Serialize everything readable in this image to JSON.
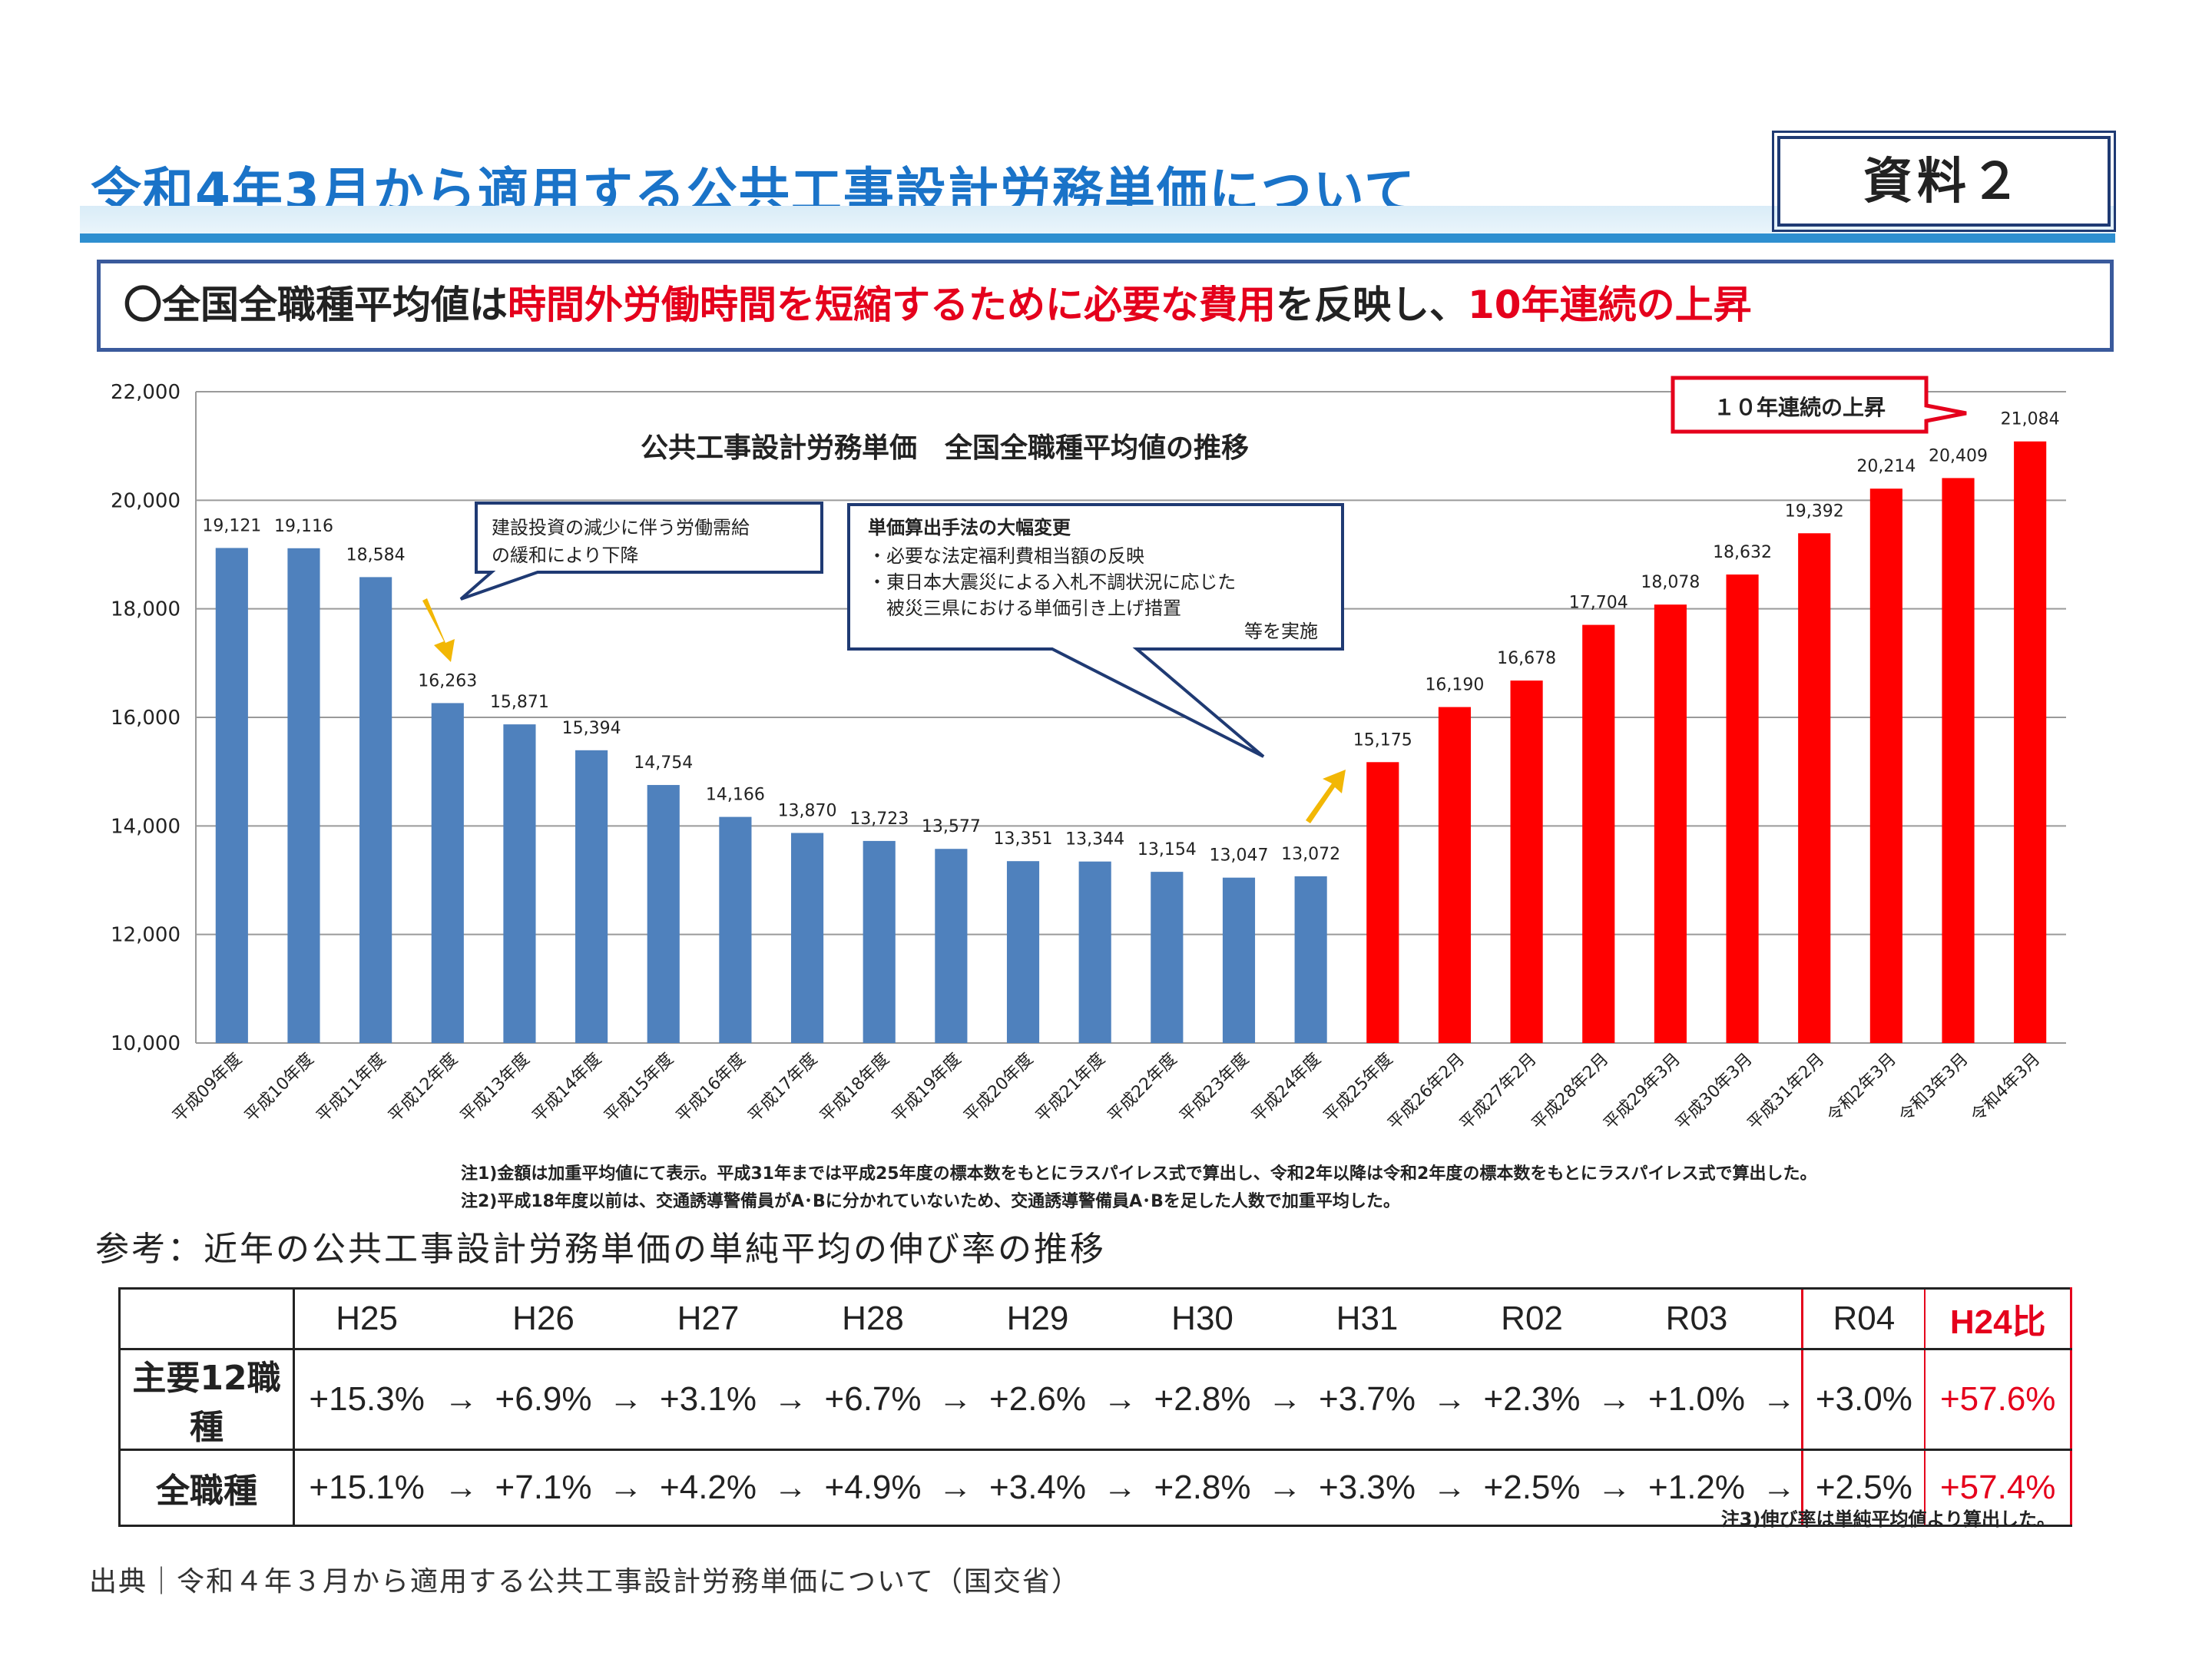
{
  "header": {
    "title": "令和4年3月から適用する公共工事設計労務単価について",
    "badge": "資料２"
  },
  "summary": {
    "prefix": "〇全国全職種平均値は",
    "highlight1": "時間外労働時間を短縮するために必要な費用",
    "middle": "を反映し、",
    "highlight2": "10年連続の上昇"
  },
  "chart_data": {
    "type": "bar",
    "title": "公共工事設計労務単価　全国全職種平均値の推移",
    "xlabel": "",
    "ylabel": "",
    "ylim": [
      10000,
      22000
    ],
    "yticks": [
      "10,000",
      "12,000",
      "14,000",
      "16,000",
      "18,000",
      "20,000",
      "22,000"
    ],
    "categories": [
      "平成09年度",
      "平成10年度",
      "平成11年度",
      "平成12年度",
      "平成13年度",
      "平成14年度",
      "平成15年度",
      "平成16年度",
      "平成17年度",
      "平成18年度",
      "平成19年度",
      "平成20年度",
      "平成21年度",
      "平成22年度",
      "平成23年度",
      "平成24年度",
      "平成25年度",
      "平成26年2月",
      "平成27年2月",
      "平成28年2月",
      "平成29年3月",
      "平成30年3月",
      "平成31年2月",
      "令和2年3月",
      "令和3年3月",
      "令和4年3月"
    ],
    "values": [
      19121,
      19116,
      18584,
      16263,
      15871,
      15394,
      14754,
      14166,
      13870,
      13723,
      13577,
      13351,
      13344,
      13154,
      13047,
      13072,
      15175,
      16190,
      16678,
      17704,
      18078,
      18632,
      19392,
      20214,
      20409,
      21084
    ],
    "value_labels": [
      "19,121",
      "19,116",
      "18,584",
      "16,263",
      "15,871",
      "15,394",
      "14,754",
      "14,166",
      "13,870",
      "13,723",
      "13,577",
      "13,351",
      "13,344",
      "13,154",
      "13,047",
      "13,072",
      "15,175",
      "16,190",
      "16,678",
      "17,704",
      "18,078",
      "18,632",
      "19,392",
      "20,214",
      "20,409",
      "21,084"
    ],
    "colors": {
      "before": "#4f81bd",
      "after": "#ff0000"
    },
    "first_red_index": 16,
    "annotations": {
      "callout1": [
        "建設投資の減少に伴う労働需給",
        "の緩和により下降"
      ],
      "callout2_title": "単価算出手法の大幅変更",
      "callout2_lines": [
        "・必要な法定福利費相当額の反映",
        "・東日本大震災による入札不調状況に応じた",
        "　被災三県における単価引き上げ措置"
      ],
      "callout2_tail": "等を実施",
      "callout3": "１０年連続の上昇"
    }
  },
  "notes": {
    "note1": "注1)金額は加重平均値にて表示。平成31年までは平成25年度の標本数をもとにラスパイレス式で算出し、令和2年以降は令和2年度の標本数をもとにラスパイレス式で算出した。",
    "note2": "注2)平成18年度以前は、交通誘導警備員がA･Bに分かれていないため、交通誘導警備員A･Bを足した人数で加重平均した。",
    "note3": "注3)伸び率は単純平均値より算出した。"
  },
  "reference": {
    "title": "参考：近年の公共工事設計労務単価の単純平均の伸び率の推移",
    "arrow": "→",
    "headers": [
      "H25",
      "H26",
      "H27",
      "H28",
      "H29",
      "H30",
      "H31",
      "R02",
      "R03",
      "R04"
    ],
    "ratio_header": "H24比",
    "rows": [
      {
        "label": "主要12職種",
        "values": [
          "+15.3%",
          "+6.9%",
          "+3.1%",
          "+6.7%",
          "+2.6%",
          "+2.8%",
          "+3.7%",
          "+2.3%",
          "+1.0%",
          "+3.0%"
        ],
        "ratio": "+57.6%"
      },
      {
        "label": "全職種",
        "values": [
          "+15.1%",
          "+7.1%",
          "+4.2%",
          "+4.9%",
          "+3.4%",
          "+2.8%",
          "+3.3%",
          "+2.5%",
          "+1.2%",
          "+2.5%"
        ],
        "ratio": "+57.4%"
      }
    ]
  },
  "source": "出典｜令和４年３月から適用する公共工事設計労務単価について（国交省）"
}
